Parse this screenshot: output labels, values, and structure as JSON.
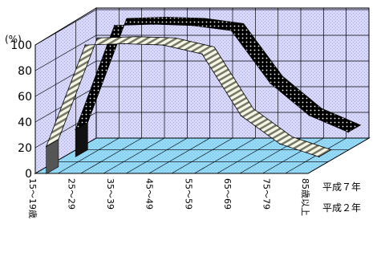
{
  "chart_data": {
    "type": "line",
    "style": "3d-ribbon",
    "unit_label": "(%)",
    "categories": [
      "15～19歳",
      "25～29",
      "35～39",
      "45～49",
      "55～59",
      "65～69",
      "75～79",
      "85歳以上"
    ],
    "series": [
      {
        "name": "平成７年",
        "pattern": "black-dotted",
        "values": [
          16,
          97,
          98,
          97,
          93,
          52,
          27,
          14
        ]
      },
      {
        "name": "平成２年",
        "pattern": "striped",
        "values": [
          16,
          95,
          96,
          95,
          88,
          40,
          18,
          8
        ]
      }
    ],
    "ylim": [
      0,
      100
    ],
    "yticks": [
      "0",
      "20",
      "40",
      "60",
      "80",
      "100"
    ],
    "grid": true,
    "legend_placement": "right, next to each ribbon end"
  }
}
